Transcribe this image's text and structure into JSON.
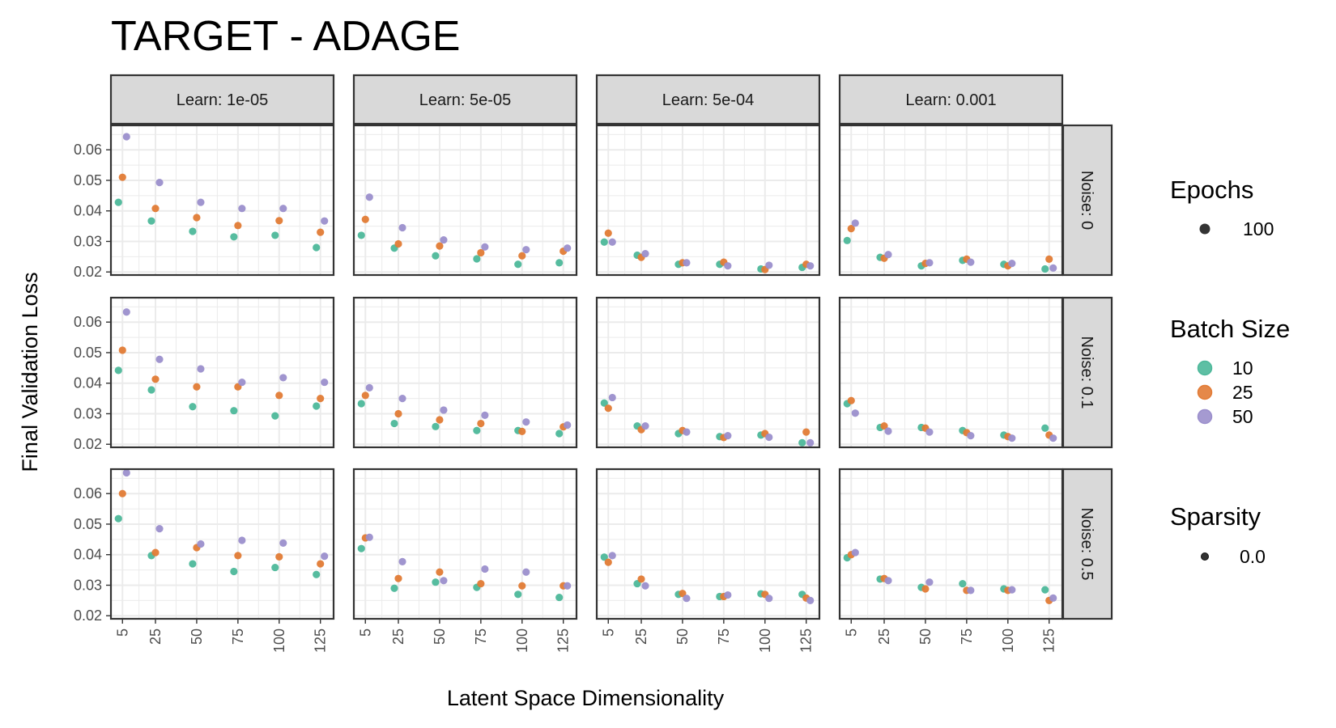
{
  "chart_data": {
    "type": "scatter",
    "title": "TARGET - ADAGE",
    "xlabel": "Latent Space Dimensionality",
    "ylabel": "Final Validation Loss",
    "x_ticks": [
      5,
      25,
      50,
      75,
      100,
      125
    ],
    "y_ticks": [
      0.02,
      0.03,
      0.04,
      0.05,
      0.06
    ],
    "x_range": [
      -2,
      133
    ],
    "y_range": [
      0.019,
      0.068
    ],
    "grid": true,
    "facet_columns": [
      "Learn: 1e-05",
      "Learn: 5e-05",
      "Learn: 5e-04",
      "Learn: 0.001"
    ],
    "facet_rows": [
      "Noise: 0",
      "Noise: 0.1",
      "Noise: 0.5"
    ],
    "batch_sizes": [
      "10",
      "25",
      "50"
    ],
    "colors": {
      "10": "#4db89a",
      "25": "#e27b35",
      "50": "#9b8fcc"
    },
    "legend": {
      "position": "right",
      "epochs": {
        "title": "Epochs",
        "items": [
          "100"
        ]
      },
      "batch": {
        "title": "Batch Size",
        "items": [
          "10",
          "25",
          "50"
        ]
      },
      "sparsity": {
        "title": "Sparsity",
        "items": [
          "0.0"
        ]
      }
    },
    "panels": [
      {
        "row": 0,
        "col": 0,
        "points": [
          [
            5,
            "10",
            0.0428
          ],
          [
            5,
            "25",
            0.051
          ],
          [
            5,
            "50",
            0.0643
          ],
          [
            25,
            "10",
            0.0367
          ],
          [
            25,
            "25",
            0.0408
          ],
          [
            25,
            "50",
            0.0493
          ],
          [
            50,
            "10",
            0.0333
          ],
          [
            50,
            "25",
            0.0378
          ],
          [
            50,
            "50",
            0.0428
          ],
          [
            75,
            "10",
            0.0315
          ],
          [
            75,
            "25",
            0.0352
          ],
          [
            75,
            "50",
            0.0408
          ],
          [
            100,
            "10",
            0.032
          ],
          [
            100,
            "25",
            0.0368
          ],
          [
            100,
            "50",
            0.0408
          ],
          [
            125,
            "10",
            0.028
          ],
          [
            125,
            "25",
            0.033
          ],
          [
            125,
            "50",
            0.0367
          ]
        ]
      },
      {
        "row": 0,
        "col": 1,
        "points": [
          [
            5,
            "10",
            0.032
          ],
          [
            5,
            "25",
            0.0372
          ],
          [
            5,
            "50",
            0.0445
          ],
          [
            25,
            "10",
            0.0278
          ],
          [
            25,
            "25",
            0.0292
          ],
          [
            25,
            "50",
            0.0345
          ],
          [
            50,
            "10",
            0.0253
          ],
          [
            50,
            "25",
            0.0285
          ],
          [
            50,
            "50",
            0.0305
          ],
          [
            75,
            "10",
            0.0243
          ],
          [
            75,
            "25",
            0.0263
          ],
          [
            75,
            "50",
            0.0282
          ],
          [
            100,
            "10",
            0.0225
          ],
          [
            100,
            "25",
            0.0253
          ],
          [
            100,
            "50",
            0.0273
          ],
          [
            125,
            "10",
            0.023
          ],
          [
            125,
            "25",
            0.0268
          ],
          [
            125,
            "50",
            0.0278
          ]
        ]
      },
      {
        "row": 0,
        "col": 2,
        "points": [
          [
            5,
            "10",
            0.0298
          ],
          [
            5,
            "25",
            0.0327
          ],
          [
            5,
            "50",
            0.0298
          ],
          [
            25,
            "10",
            0.0255
          ],
          [
            25,
            "25",
            0.0248
          ],
          [
            25,
            "50",
            0.026
          ],
          [
            50,
            "10",
            0.0225
          ],
          [
            50,
            "25",
            0.023
          ],
          [
            50,
            "50",
            0.023
          ],
          [
            75,
            "10",
            0.0225
          ],
          [
            75,
            "25",
            0.0232
          ],
          [
            75,
            "50",
            0.022
          ],
          [
            100,
            "10",
            0.021
          ],
          [
            100,
            "25",
            0.0208
          ],
          [
            100,
            "50",
            0.0222
          ],
          [
            125,
            "10",
            0.0215
          ],
          [
            125,
            "25",
            0.0225
          ],
          [
            125,
            "50",
            0.022
          ]
        ]
      },
      {
        "row": 0,
        "col": 3,
        "points": [
          [
            5,
            "10",
            0.0303
          ],
          [
            5,
            "25",
            0.0342
          ],
          [
            5,
            "50",
            0.036
          ],
          [
            25,
            "10",
            0.0248
          ],
          [
            25,
            "25",
            0.0245
          ],
          [
            25,
            "50",
            0.0257
          ],
          [
            50,
            "10",
            0.022
          ],
          [
            50,
            "25",
            0.0228
          ],
          [
            50,
            "50",
            0.023
          ],
          [
            75,
            "10",
            0.0238
          ],
          [
            75,
            "25",
            0.0242
          ],
          [
            75,
            "50",
            0.0232
          ],
          [
            100,
            "10",
            0.0225
          ],
          [
            100,
            "25",
            0.022
          ],
          [
            100,
            "50",
            0.0228
          ],
          [
            125,
            "10",
            0.021
          ],
          [
            125,
            "25",
            0.0242
          ],
          [
            125,
            "50",
            0.0213
          ]
        ]
      },
      {
        "row": 1,
        "col": 0,
        "points": [
          [
            5,
            "10",
            0.0442
          ],
          [
            5,
            "25",
            0.0508
          ],
          [
            5,
            "50",
            0.0633
          ],
          [
            25,
            "10",
            0.0378
          ],
          [
            25,
            "25",
            0.0413
          ],
          [
            25,
            "50",
            0.0478
          ],
          [
            50,
            "10",
            0.0323
          ],
          [
            50,
            "25",
            0.0388
          ],
          [
            50,
            "50",
            0.0447
          ],
          [
            75,
            "10",
            0.031
          ],
          [
            75,
            "25",
            0.0388
          ],
          [
            75,
            "50",
            0.0403
          ],
          [
            100,
            "10",
            0.0293
          ],
          [
            100,
            "25",
            0.036
          ],
          [
            100,
            "50",
            0.0418
          ],
          [
            125,
            "10",
            0.0325
          ],
          [
            125,
            "25",
            0.035
          ],
          [
            125,
            "50",
            0.0403
          ]
        ]
      },
      {
        "row": 1,
        "col": 1,
        "points": [
          [
            5,
            "10",
            0.0333
          ],
          [
            5,
            "25",
            0.036
          ],
          [
            5,
            "50",
            0.0385
          ],
          [
            25,
            "10",
            0.0268
          ],
          [
            25,
            "25",
            0.03
          ],
          [
            25,
            "50",
            0.035
          ],
          [
            50,
            "10",
            0.0258
          ],
          [
            50,
            "25",
            0.028
          ],
          [
            50,
            "50",
            0.0312
          ],
          [
            75,
            "10",
            0.0245
          ],
          [
            75,
            "25",
            0.0268
          ],
          [
            75,
            "50",
            0.0295
          ],
          [
            100,
            "10",
            0.0245
          ],
          [
            100,
            "25",
            0.0242
          ],
          [
            100,
            "50",
            0.0273
          ],
          [
            125,
            "10",
            0.0235
          ],
          [
            125,
            "25",
            0.0257
          ],
          [
            125,
            "50",
            0.0263
          ]
        ]
      },
      {
        "row": 1,
        "col": 2,
        "points": [
          [
            5,
            "10",
            0.0335
          ],
          [
            5,
            "25",
            0.0318
          ],
          [
            5,
            "50",
            0.0353
          ],
          [
            25,
            "10",
            0.026
          ],
          [
            25,
            "25",
            0.0248
          ],
          [
            25,
            "50",
            0.026
          ],
          [
            50,
            "10",
            0.0235
          ],
          [
            50,
            "25",
            0.0245
          ],
          [
            50,
            "50",
            0.024
          ],
          [
            75,
            "10",
            0.0225
          ],
          [
            75,
            "25",
            0.0222
          ],
          [
            75,
            "50",
            0.0228
          ],
          [
            100,
            "10",
            0.023
          ],
          [
            100,
            "25",
            0.0235
          ],
          [
            100,
            "50",
            0.0223
          ],
          [
            125,
            "10",
            0.0205
          ],
          [
            125,
            "25",
            0.024
          ],
          [
            125,
            "50",
            0.0205
          ]
        ]
      },
      {
        "row": 1,
        "col": 3,
        "points": [
          [
            5,
            "10",
            0.0333
          ],
          [
            5,
            "25",
            0.0343
          ],
          [
            5,
            "50",
            0.0302
          ],
          [
            25,
            "10",
            0.0255
          ],
          [
            25,
            "25",
            0.026
          ],
          [
            25,
            "50",
            0.0243
          ],
          [
            50,
            "10",
            0.0255
          ],
          [
            50,
            "25",
            0.0253
          ],
          [
            50,
            "50",
            0.024
          ],
          [
            75,
            "10",
            0.0245
          ],
          [
            75,
            "25",
            0.0238
          ],
          [
            75,
            "50",
            0.0228
          ],
          [
            100,
            "10",
            0.023
          ],
          [
            100,
            "25",
            0.0225
          ],
          [
            100,
            "50",
            0.022
          ],
          [
            125,
            "10",
            0.0253
          ],
          [
            125,
            "25",
            0.023
          ],
          [
            125,
            "50",
            0.022
          ]
        ]
      },
      {
        "row": 2,
        "col": 0,
        "points": [
          [
            5,
            "10",
            0.0518
          ],
          [
            5,
            "25",
            0.06
          ],
          [
            5,
            "50",
            0.0668
          ],
          [
            25,
            "10",
            0.0397
          ],
          [
            25,
            "25",
            0.0407
          ],
          [
            25,
            "50",
            0.0485
          ],
          [
            50,
            "10",
            0.037
          ],
          [
            50,
            "25",
            0.0423
          ],
          [
            50,
            "50",
            0.0435
          ],
          [
            75,
            "10",
            0.0345
          ],
          [
            75,
            "25",
            0.0397
          ],
          [
            75,
            "50",
            0.0447
          ],
          [
            100,
            "10",
            0.0358
          ],
          [
            100,
            "25",
            0.0393
          ],
          [
            100,
            "50",
            0.0438
          ],
          [
            125,
            "10",
            0.0335
          ],
          [
            125,
            "25",
            0.037
          ],
          [
            125,
            "50",
            0.0395
          ]
        ]
      },
      {
        "row": 2,
        "col": 1,
        "points": [
          [
            5,
            "10",
            0.042
          ],
          [
            5,
            "25",
            0.0455
          ],
          [
            5,
            "50",
            0.0457
          ],
          [
            25,
            "10",
            0.029
          ],
          [
            25,
            "25",
            0.0322
          ],
          [
            25,
            "50",
            0.0377
          ],
          [
            50,
            "10",
            0.031
          ],
          [
            50,
            "25",
            0.0343
          ],
          [
            50,
            "50",
            0.0315
          ],
          [
            75,
            "10",
            0.0293
          ],
          [
            75,
            "25",
            0.0305
          ],
          [
            75,
            "50",
            0.0353
          ],
          [
            100,
            "10",
            0.027
          ],
          [
            100,
            "25",
            0.0298
          ],
          [
            100,
            "50",
            0.0343
          ],
          [
            125,
            "10",
            0.026
          ],
          [
            125,
            "25",
            0.0298
          ],
          [
            125,
            "50",
            0.0298
          ]
        ]
      },
      {
        "row": 2,
        "col": 2,
        "points": [
          [
            5,
            "10",
            0.0392
          ],
          [
            5,
            "25",
            0.0375
          ],
          [
            5,
            "50",
            0.0397
          ],
          [
            25,
            "10",
            0.0305
          ],
          [
            25,
            "25",
            0.032
          ],
          [
            25,
            "50",
            0.0298
          ],
          [
            50,
            "10",
            0.027
          ],
          [
            50,
            "25",
            0.0273
          ],
          [
            50,
            "50",
            0.0257
          ],
          [
            75,
            "10",
            0.0263
          ],
          [
            75,
            "25",
            0.0263
          ],
          [
            75,
            "50",
            0.0268
          ],
          [
            100,
            "10",
            0.0272
          ],
          [
            100,
            "25",
            0.027
          ],
          [
            100,
            "50",
            0.0257
          ],
          [
            125,
            "10",
            0.027
          ],
          [
            125,
            "25",
            0.0258
          ],
          [
            125,
            "50",
            0.025
          ]
        ]
      },
      {
        "row": 2,
        "col": 3,
        "points": [
          [
            5,
            "10",
            0.039
          ],
          [
            5,
            "25",
            0.04
          ],
          [
            5,
            "50",
            0.0407
          ],
          [
            25,
            "10",
            0.032
          ],
          [
            25,
            "25",
            0.0322
          ],
          [
            25,
            "50",
            0.0315
          ],
          [
            50,
            "10",
            0.0293
          ],
          [
            50,
            "25",
            0.0288
          ],
          [
            50,
            "50",
            0.031
          ],
          [
            75,
            "10",
            0.0305
          ],
          [
            75,
            "25",
            0.0283
          ],
          [
            75,
            "50",
            0.0283
          ],
          [
            100,
            "10",
            0.0288
          ],
          [
            100,
            "25",
            0.0283
          ],
          [
            100,
            "50",
            0.0285
          ],
          [
            125,
            "10",
            0.0285
          ],
          [
            125,
            "25",
            0.025
          ],
          [
            125,
            "50",
            0.0258
          ]
        ]
      }
    ]
  }
}
